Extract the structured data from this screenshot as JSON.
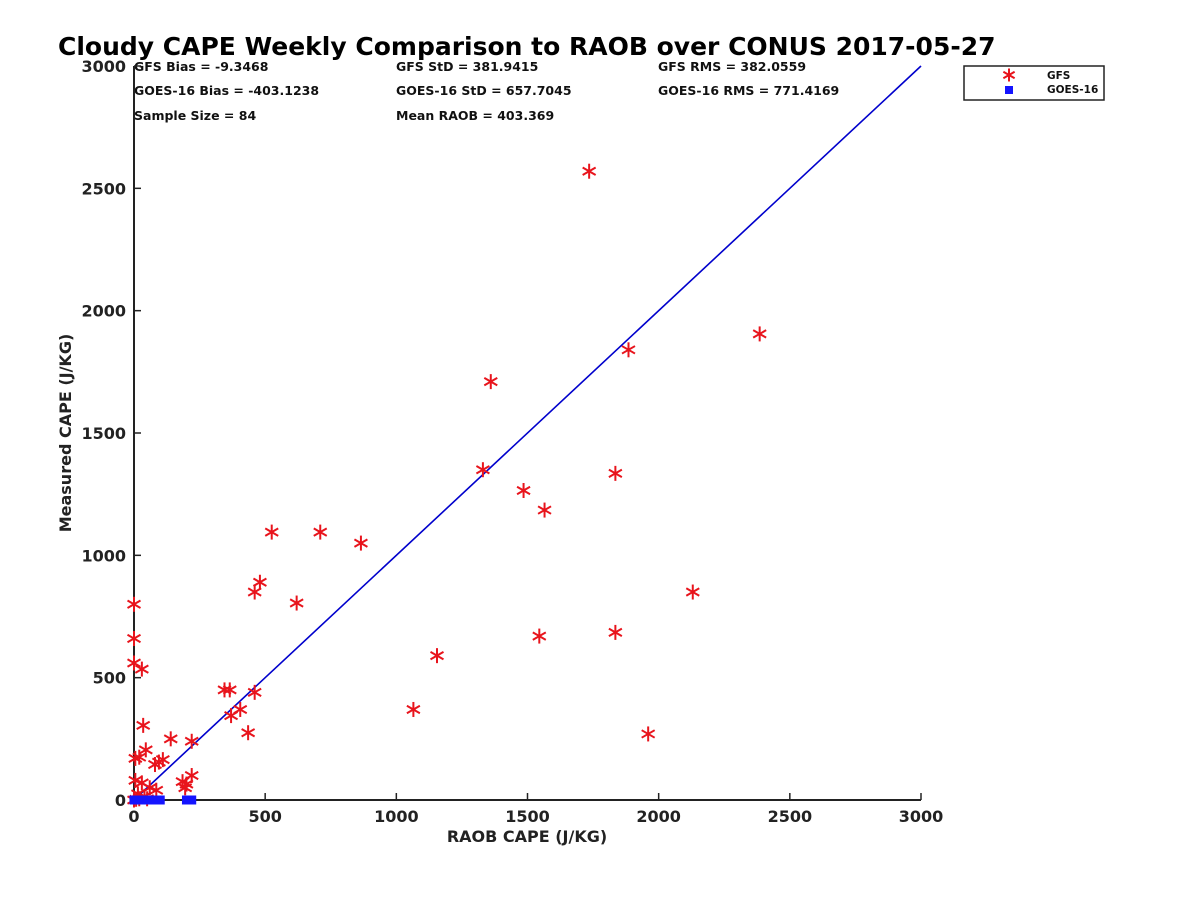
{
  "chart_data": {
    "type": "scatter",
    "title": "Cloudy CAPE Weekly Comparison to RAOB over CONUS 2017-05-27",
    "xlabel": "RAOB CAPE (J/KG)",
    "ylabel": "Measured CAPE (J/KG)",
    "xlim": [
      0,
      3000
    ],
    "ylim": [
      0,
      3000
    ],
    "xticks": [
      "0",
      "500",
      "1000",
      "1500",
      "2000",
      "2500",
      "3000"
    ],
    "yticks": [
      "0",
      "500",
      "1000",
      "1500",
      "2000",
      "2500",
      "3000"
    ],
    "grid": false,
    "legend_position": "top-right, outside plot",
    "stats": [
      "GFS Bias = -9.3468",
      "GFS StD = 381.9415",
      "GFS RMS = 382.0559",
      "GOES-16 Bias = -403.1238",
      "GOES-16 StD = 657.7045",
      "GOES-16 RMS = 771.4169",
      "Sample Size = 84",
      "Mean RAOB = 403.369"
    ],
    "reference_line": {
      "x": [
        0,
        3000
      ],
      "y": [
        0,
        3000
      ],
      "color": "#0000cc"
    },
    "series": [
      {
        "name": "GFS",
        "marker": "asterisk",
        "color": "#e8141c",
        "points": [
          [
            1735,
            2570
          ],
          [
            2385,
            1905
          ],
          [
            1885,
            1840
          ],
          [
            1360,
            1710
          ],
          [
            1330,
            1350
          ],
          [
            1835,
            1335
          ],
          [
            1485,
            1265
          ],
          [
            1565,
            1185
          ],
          [
            525,
            1095
          ],
          [
            710,
            1095
          ],
          [
            865,
            1050
          ],
          [
            480,
            890
          ],
          [
            460,
            850
          ],
          [
            2130,
            850
          ],
          [
            620,
            805
          ],
          [
            0,
            800
          ],
          [
            1835,
            685
          ],
          [
            1545,
            670
          ],
          [
            0,
            660
          ],
          [
            1155,
            590
          ],
          [
            0,
            560
          ],
          [
            30,
            535
          ],
          [
            345,
            450
          ],
          [
            365,
            450
          ],
          [
            460,
            440
          ],
          [
            1065,
            370
          ],
          [
            405,
            370
          ],
          [
            370,
            345
          ],
          [
            35,
            305
          ],
          [
            435,
            275
          ],
          [
            1960,
            270
          ],
          [
            140,
            250
          ],
          [
            220,
            240
          ],
          [
            45,
            205
          ],
          [
            5,
            170
          ],
          [
            110,
            165
          ],
          [
            20,
            175
          ],
          [
            95,
            155
          ],
          [
            80,
            145
          ],
          [
            220,
            100
          ],
          [
            5,
            80
          ],
          [
            30,
            70
          ],
          [
            185,
            75
          ],
          [
            200,
            65
          ],
          [
            195,
            50
          ],
          [
            60,
            50
          ],
          [
            85,
            40
          ],
          [
            15,
            25
          ],
          [
            40,
            15
          ],
          [
            20,
            5
          ],
          [
            0,
            0
          ],
          [
            8,
            3
          ],
          [
            50,
            5
          ]
        ]
      },
      {
        "name": "GOES-16",
        "marker": "square",
        "color": "#1414ff",
        "points": [
          [
            0,
            0
          ],
          [
            5,
            0
          ],
          [
            10,
            0
          ],
          [
            15,
            0
          ],
          [
            20,
            0
          ],
          [
            25,
            0
          ],
          [
            30,
            0
          ],
          [
            40,
            0
          ],
          [
            50,
            0
          ],
          [
            60,
            0
          ],
          [
            70,
            0
          ],
          [
            85,
            0
          ],
          [
            90,
            0
          ],
          [
            100,
            0
          ],
          [
            200,
            0
          ],
          [
            210,
            0
          ],
          [
            215,
            0
          ],
          [
            220,
            0
          ]
        ]
      }
    ]
  }
}
